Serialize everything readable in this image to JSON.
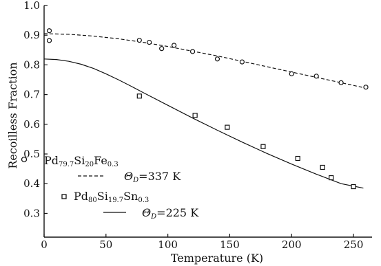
{
  "chart_data": {
    "type": "scatter",
    "xlabel": "Temperature (K)",
    "ylabel": "Recoilless Fraction",
    "xlim": [
      0,
      265
    ],
    "ylim": [
      0.22,
      1.0
    ],
    "x_ticks": [
      0,
      50,
      100,
      150,
      200,
      250
    ],
    "y_ticks": [
      1.0,
      0.9,
      0.8,
      0.7,
      0.6,
      0.5,
      0.4,
      0.3
    ],
    "x_tick_labels": [
      "0",
      "50",
      "100",
      "150",
      "200",
      "250"
    ],
    "y_tick_labels": [
      "1.0",
      "0.9",
      "0.8",
      "0.7",
      "0.6",
      "0.5",
      "0.4",
      "0.3"
    ],
    "grid": false,
    "legend_position": "lower-left",
    "series": [
      {
        "name": "Pd79.7Si20Fe0.3",
        "formula": {
          "p1": "Pd",
          "s1": "79.7",
          "p2": "Si",
          "s2": "20",
          "p3": "Fe",
          "s3": "0.3"
        },
        "marker": "circle",
        "line": "dashed",
        "theta_label": "Θ",
        "theta_sub": "D",
        "theta_value": "=337 K",
        "x": [
          4.2,
          4.2,
          77,
          85,
          95,
          105,
          120,
          140,
          160,
          200,
          220,
          240,
          260
        ],
        "y": [
          0.915,
          0.882,
          0.883,
          0.876,
          0.855,
          0.866,
          0.845,
          0.82,
          0.81,
          0.77,
          0.762,
          0.74,
          0.725
        ],
        "fit_x": [
          0,
          20,
          40,
          60,
          80,
          100,
          120,
          140,
          160,
          180,
          200,
          220,
          240,
          262
        ],
        "fit_y": [
          0.905,
          0.903,
          0.897,
          0.888,
          0.876,
          0.862,
          0.846,
          0.83,
          0.812,
          0.794,
          0.776,
          0.758,
          0.74,
          0.72
        ]
      },
      {
        "name": "Pd80Si19.7Sn0.3",
        "formula": {
          "p1": "Pd",
          "s1": "80",
          "p2": "Si",
          "s2": "19.7",
          "p3": "Sn",
          "s3": "0.3"
        },
        "marker": "square",
        "line": "solid",
        "theta_label": "Θ",
        "theta_sub": "D",
        "theta_value": "=225 K",
        "x": [
          77,
          122,
          148,
          177,
          205,
          225,
          232,
          250
        ],
        "y": [
          0.695,
          0.63,
          0.59,
          0.525,
          0.485,
          0.455,
          0.42,
          0.39
        ],
        "fit_x": [
          0,
          10,
          20,
          30,
          40,
          50,
          60,
          70,
          80,
          100,
          120,
          140,
          160,
          180,
          200,
          220,
          240,
          258
        ],
        "fit_y": [
          0.82,
          0.818,
          0.812,
          0.802,
          0.788,
          0.77,
          0.75,
          0.729,
          0.707,
          0.664,
          0.621,
          0.58,
          0.54,
          0.502,
          0.466,
          0.432,
          0.4,
          0.385
        ]
      }
    ]
  }
}
